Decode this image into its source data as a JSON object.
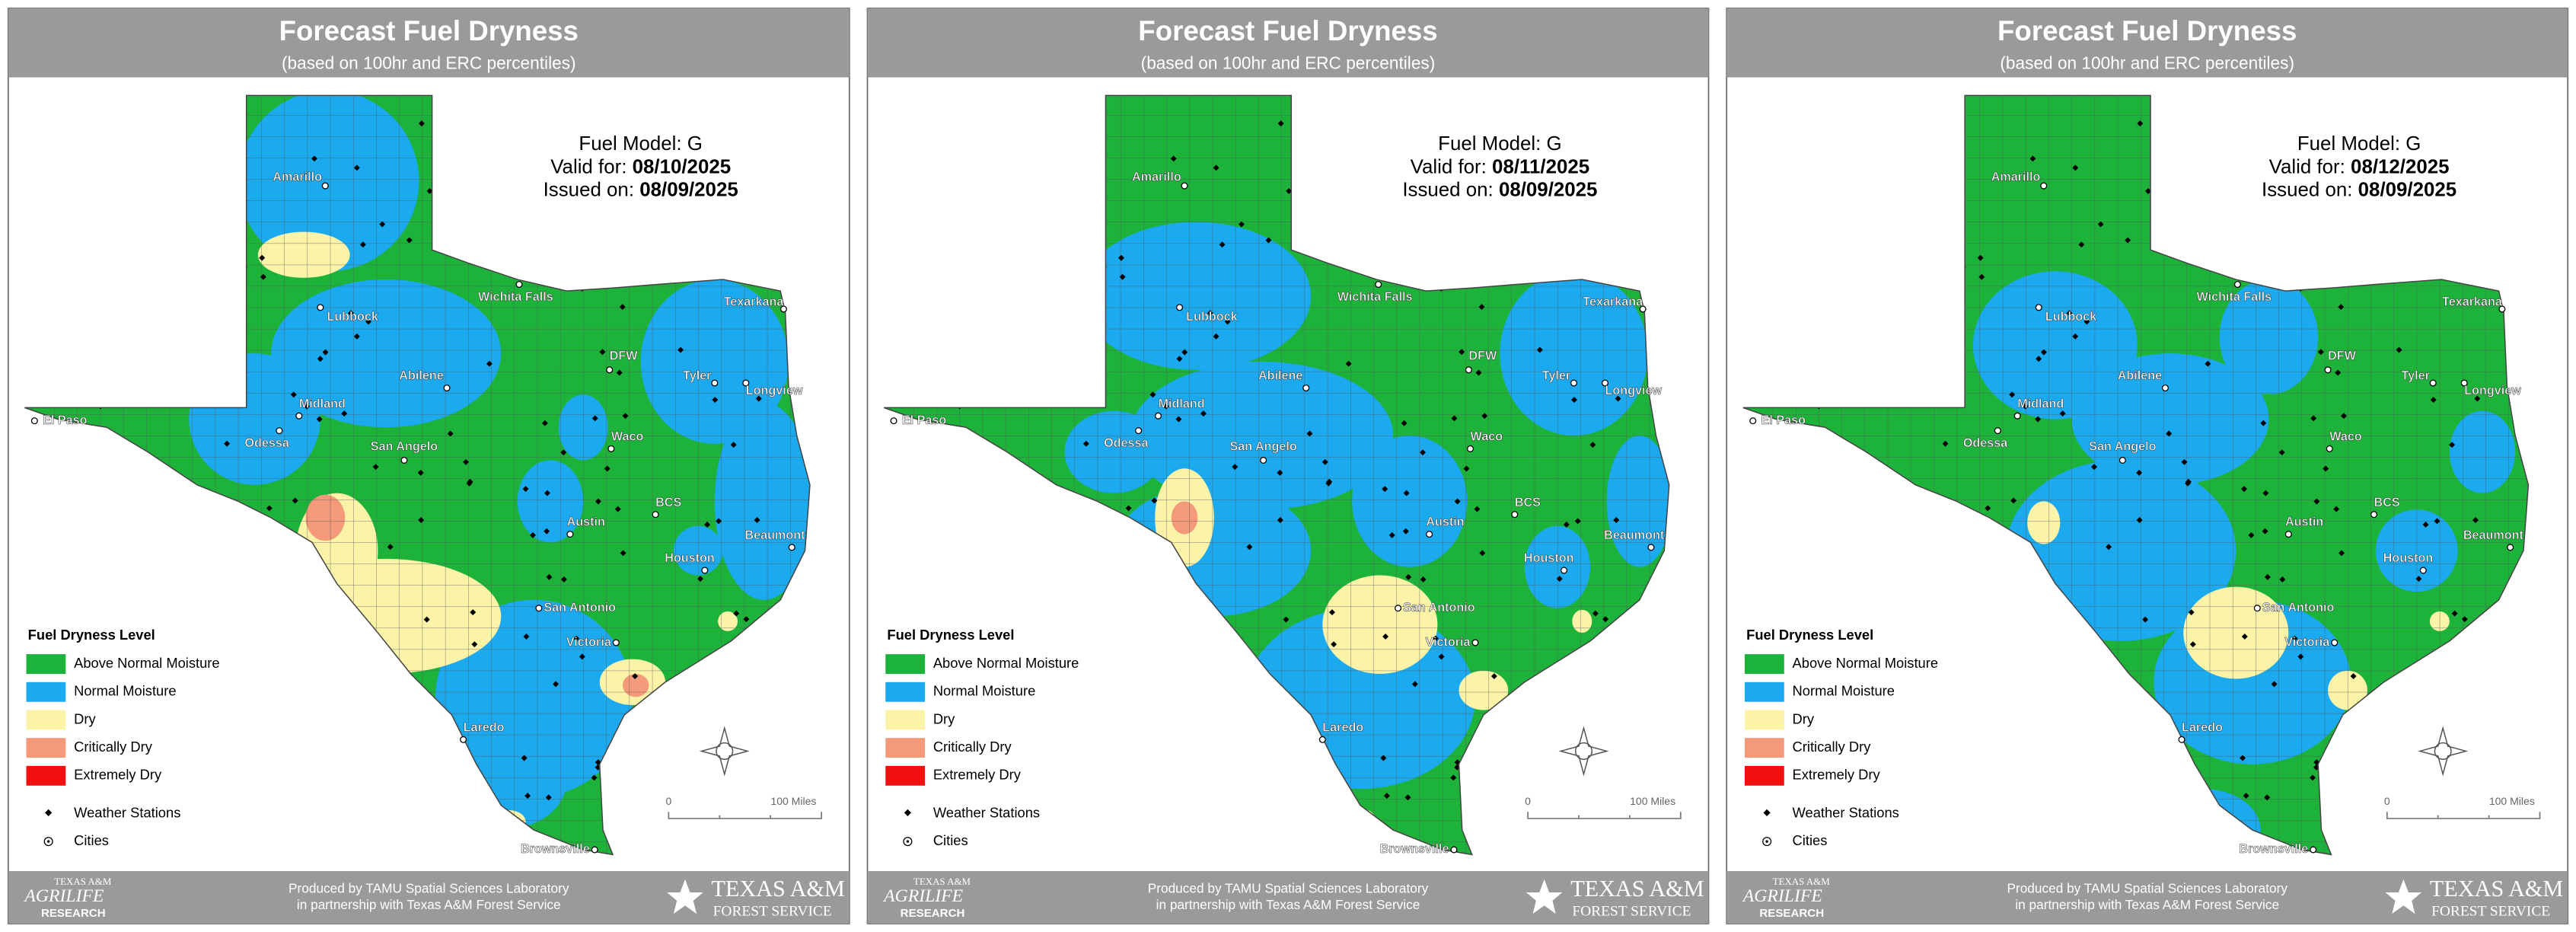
{
  "panels": [
    {
      "title": "Forecast Fuel Dryness",
      "subtitle": "(based on 100hr and ERC percentiles)",
      "fuel_model": "Fuel Model: G",
      "valid_label": "Valid for:",
      "valid_date": "08/10/2025",
      "issued_label": "Issued on:",
      "issued_date": "08/09/2025"
    },
    {
      "title": "Forecast Fuel Dryness",
      "subtitle": "(based on 100hr and ERC percentiles)",
      "fuel_model": "Fuel Model: G",
      "valid_label": "Valid for:",
      "valid_date": "08/11/2025",
      "issued_label": "Issued on:",
      "issued_date": "08/09/2025"
    },
    {
      "title": "Forecast Fuel Dryness",
      "subtitle": "(based on 100hr and ERC percentiles)",
      "fuel_model": "Fuel Model: G",
      "valid_label": "Valid for:",
      "valid_date": "08/12/2025",
      "issued_label": "Issued on:",
      "issued_date": "08/09/2025"
    }
  ],
  "cities": [
    "Amarillo",
    "Lubbock",
    "Wichita Falls",
    "Texarkana",
    "DFW",
    "Tyler",
    "Longview",
    "El Paso",
    "Midland",
    "Odessa",
    "Abilene",
    "San Angelo",
    "Waco",
    "BCS",
    "Austin",
    "Beaumont",
    "Houston",
    "San Antonio",
    "Victoria",
    "Laredo",
    "Brownsville"
  ],
  "legend": {
    "title": "Fuel Dryness Level",
    "items": [
      {
        "label": "Above Normal Moisture",
        "color": "#1db33a"
      },
      {
        "label": "Normal Moisture",
        "color": "#1ba9ef"
      },
      {
        "label": "Dry",
        "color": "#fbf3a8"
      },
      {
        "label": "Critically Dry",
        "color": "#f4997a"
      },
      {
        "label": "Extremely Dry",
        "color": "#f01010"
      }
    ],
    "stations": "Weather Stations",
    "cities": "Cities"
  },
  "scale": {
    "start": "0",
    "end": "100 Miles"
  },
  "footer": {
    "line1": "Produced by TAMU Spatial Sciences Laboratory",
    "line2": "in partnership with Texas A&M Forest Service",
    "left_logo": [
      "TEXAS A&M",
      "AGRILIFE",
      "RESEARCH"
    ],
    "right_logo": [
      "TEXAS A&M",
      "FOREST SERVICE"
    ]
  }
}
